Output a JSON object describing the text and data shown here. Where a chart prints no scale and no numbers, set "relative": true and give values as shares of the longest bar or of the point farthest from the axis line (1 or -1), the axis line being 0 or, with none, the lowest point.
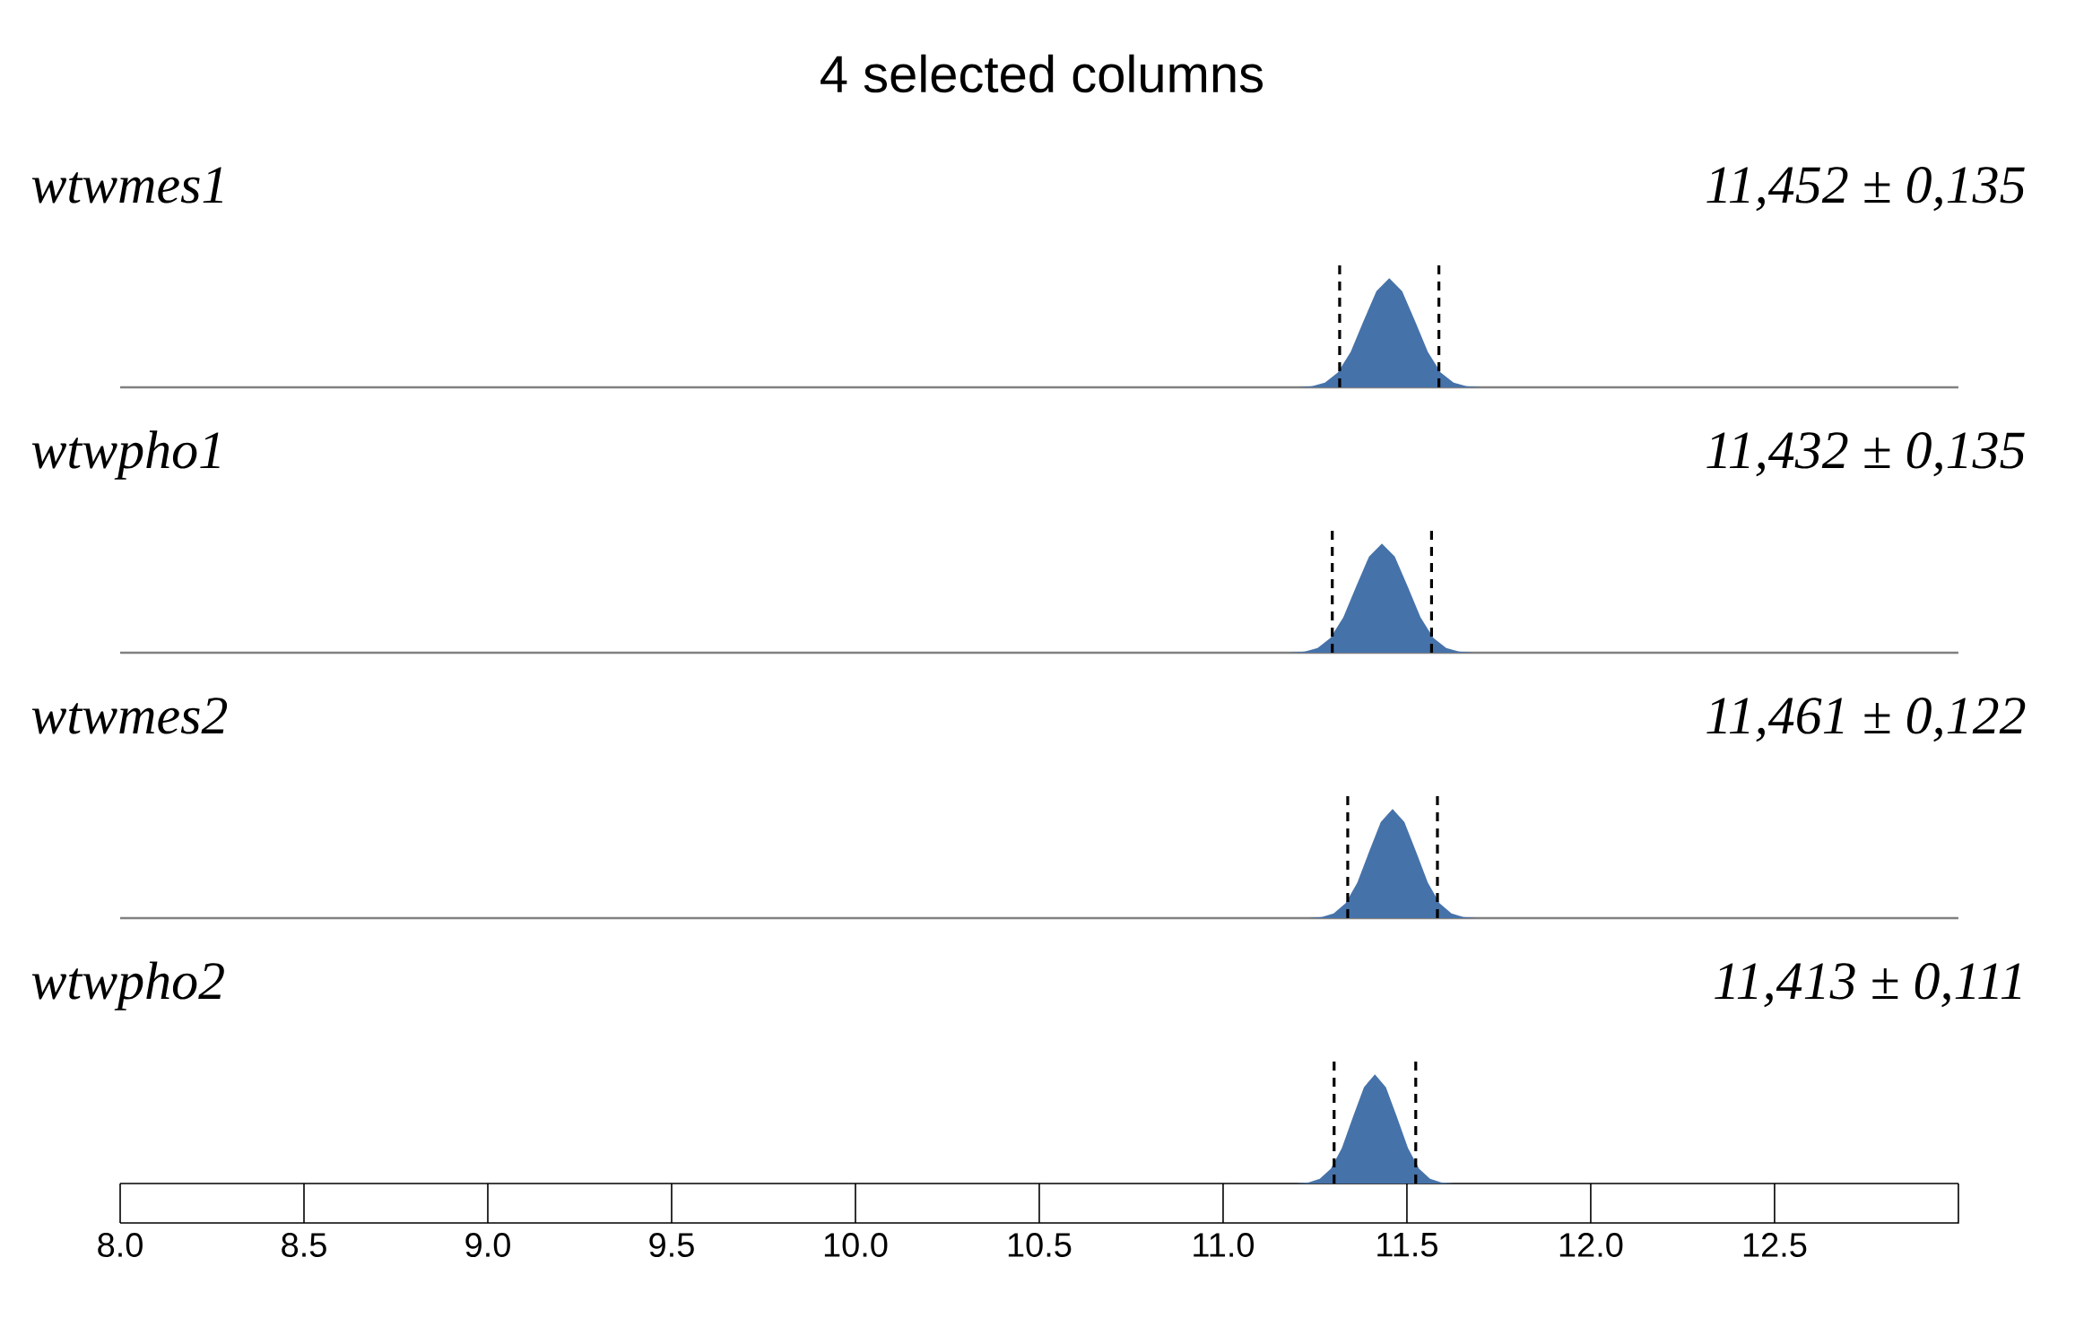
{
  "chart_data": [
    {
      "type": "area",
      "relative": true,
      "title": "4 selected columns",
      "subtitle": "wtwmes1",
      "annotations": [
        "11,452 ± 0,135"
      ],
      "xlim": [
        8.0,
        13.0
      ],
      "tick_labels": false,
      "x": [
        11.207,
        11.242,
        11.277,
        11.312,
        11.347,
        11.382,
        11.417,
        11.452,
        11.487,
        11.522,
        11.557,
        11.592,
        11.627,
        11.662,
        11.697
      ],
      "series": [
        {
          "color": "#4672aa",
          "values": [
            0.002,
            0.011,
            0.044,
            0.135,
            0.325,
            0.607,
            0.882,
            1,
            0.882,
            0.607,
            0.325,
            0.135,
            0.044,
            0.011,
            0.002
          ]
        }
      ],
      "ref_lines": [
        {
          "axis": "x",
          "value": 11.317,
          "color": "#000000",
          "line_style": "dashed"
        },
        {
          "axis": "x",
          "value": 11.587,
          "color": "#000000",
          "line_style": "dashed"
        }
      ]
    },
    {
      "type": "area",
      "relative": true,
      "subtitle": "wtwpho1",
      "annotations": [
        "11,432 ± 0,135"
      ],
      "xlim": [
        8.0,
        13.0
      ],
      "tick_labels": false,
      "x": [
        11.187,
        11.222,
        11.257,
        11.292,
        11.327,
        11.362,
        11.397,
        11.432,
        11.467,
        11.502,
        11.537,
        11.572,
        11.607,
        11.642,
        11.677
      ],
      "series": [
        {
          "color": "#4672aa",
          "values": [
            0.002,
            0.011,
            0.044,
            0.135,
            0.325,
            0.607,
            0.882,
            1,
            0.882,
            0.607,
            0.325,
            0.135,
            0.044,
            0.011,
            0.002
          ]
        }
      ],
      "ref_lines": [
        {
          "axis": "x",
          "value": 11.297,
          "color": "#000000",
          "line_style": "dashed"
        },
        {
          "axis": "x",
          "value": 11.567,
          "color": "#000000",
          "line_style": "dashed"
        }
      ]
    },
    {
      "type": "area",
      "relative": true,
      "subtitle": "wtwmes2",
      "annotations": [
        "11,461 ± 0,122"
      ],
      "xlim": [
        8.0,
        13.0
      ],
      "tick_labels": false,
      "x": [
        11.237,
        11.269,
        11.301,
        11.333,
        11.365,
        11.397,
        11.429,
        11.461,
        11.493,
        11.525,
        11.557,
        11.589,
        11.621,
        11.653,
        11.685
      ],
      "series": [
        {
          "color": "#4672aa",
          "values": [
            0.002,
            0.011,
            0.044,
            0.135,
            0.325,
            0.607,
            0.882,
            1,
            0.882,
            0.607,
            0.325,
            0.135,
            0.044,
            0.011,
            0.002
          ]
        }
      ],
      "ref_lines": [
        {
          "axis": "x",
          "value": 11.339,
          "color": "#000000",
          "line_style": "dashed"
        },
        {
          "axis": "x",
          "value": 11.583,
          "color": "#000000",
          "line_style": "dashed"
        }
      ]
    },
    {
      "type": "area",
      "relative": true,
      "subtitle": "wtwpho2",
      "annotations": [
        "11,413 ± 0,111"
      ],
      "xlim": [
        8.0,
        13.0
      ],
      "tick_labels": "x",
      "xticks": [
        {
          "value": 8.0,
          "label": "8.0"
        },
        {
          "value": 8.5,
          "label": "8.5"
        },
        {
          "value": 9.0,
          "label": "9.0"
        },
        {
          "value": 9.5,
          "label": "9.5"
        },
        {
          "value": 10.0,
          "label": "10.0"
        },
        {
          "value": 10.5,
          "label": "10.5"
        },
        {
          "value": 11.0,
          "label": "11.0"
        },
        {
          "value": 11.5,
          "label": "11.5"
        },
        {
          "value": 12.0,
          "label": "12.0"
        },
        {
          "value": 12.5,
          "label": "12.5"
        }
      ],
      "x": [
        11.203,
        11.233,
        11.263,
        11.293,
        11.323,
        11.353,
        11.383,
        11.413,
        11.443,
        11.473,
        11.503,
        11.533,
        11.563,
        11.593,
        11.623
      ],
      "series": [
        {
          "color": "#4672aa",
          "values": [
            0.002,
            0.011,
            0.044,
            0.135,
            0.325,
            0.607,
            0.882,
            1,
            0.882,
            0.607,
            0.325,
            0.135,
            0.044,
            0.011,
            0.002
          ]
        }
      ],
      "ref_lines": [
        {
          "axis": "x",
          "value": 11.302,
          "color": "#000000",
          "line_style": "dashed"
        },
        {
          "axis": "x",
          "value": 11.524,
          "color": "#000000",
          "line_style": "dashed"
        }
      ]
    }
  ]
}
